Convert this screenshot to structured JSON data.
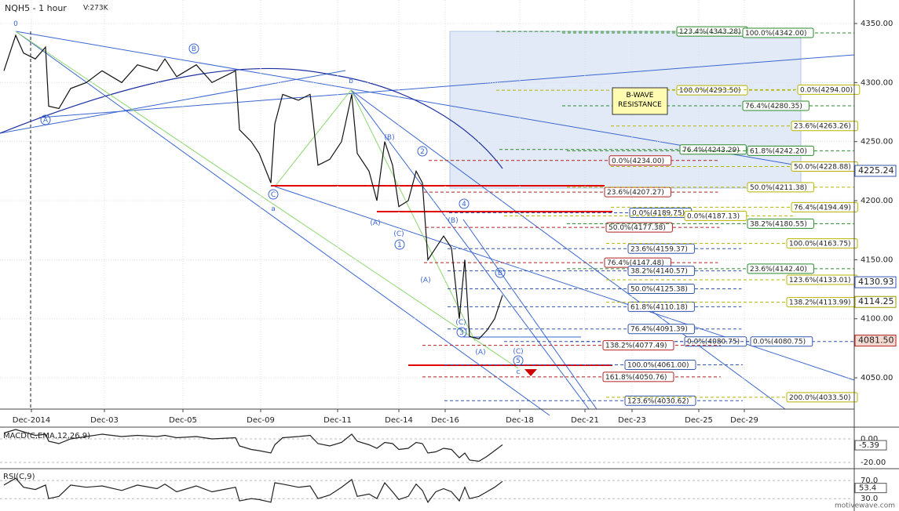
{
  "chart_data": {
    "type": "line",
    "title": "NQH5 - 1 hour",
    "subtitle": "V:273K",
    "color": "#111111",
    "x": [
      2,
      8,
      12,
      18,
      23.2,
      24.8,
      30,
      36,
      44,
      52,
      62,
      70,
      80,
      84,
      90,
      100,
      108,
      120,
      122,
      128,
      132,
      138,
      140,
      144,
      152,
      158,
      162,
      168,
      174,
      179.2,
      182,
      188,
      192,
      196,
      200,
      203.2,
      208,
      212,
      215.2,
      218,
      222,
      226,
      230,
      234,
      236.8,
      239.2,
      244,
      248,
      252,
      256
    ],
    "values": [
      4310,
      4340,
      4325,
      4320,
      4330,
      4280,
      4278,
      4295,
      4300,
      4310,
      4300,
      4315,
      4310,
      4320,
      4305,
      4315,
      4300,
      4310,
      4260,
      4250,
      4240,
      4215,
      4265,
      4290,
      4285,
      4290,
      4230,
      4235,
      4250,
      4290,
      4240,
      4225,
      4200,
      4250,
      4230,
      4195,
      4200,
      4225,
      4215,
      4150,
      4160,
      4170,
      4160,
      4100,
      4150,
      4085,
      4083,
      4090,
      4100,
      4120
    ],
    "xlim": [
      0,
      435.2
    ],
    "xticks": [
      {
        "value": 16,
        "label": "Dec-2014"
      },
      {
        "value": 53.2,
        "label": "Dec-03"
      },
      {
        "value": 93.2,
        "label": "Dec-05"
      },
      {
        "value": 132.8,
        "label": "Dec-09"
      },
      {
        "value": 172,
        "label": "Dec-11"
      },
      {
        "value": 203.2,
        "label": "Dec-14"
      },
      {
        "value": 226.8,
        "label": "Dec-16"
      },
      {
        "value": 264.8,
        "label": "Dec-18"
      },
      {
        "value": 298,
        "label": "Dec-21"
      },
      {
        "value": 322,
        "label": "Dec-23"
      },
      {
        "value": 356,
        "label": "Dec-25"
      },
      {
        "value": 379.2,
        "label": "Dec-29"
      }
    ],
    "ylim": [
      4023.5,
      4369.9
    ],
    "yticks": [
      {
        "value": 4050,
        "label": "4050.00"
      },
      {
        "value": 4100,
        "label": "4100.00"
      },
      {
        "value": 4150,
        "label": "4150.00"
      },
      {
        "value": 4200,
        "label": "4200.00"
      },
      {
        "value": 4250,
        "label": "4250.00"
      },
      {
        "value": 4300,
        "label": "4300.00"
      },
      {
        "value": 4350,
        "label": "4350.00"
      }
    ],
    "grid": true,
    "price_tags": [
      {
        "value": 4225.24,
        "color": "#3355aa"
      },
      {
        "value": 4130.93,
        "color": "#3355aa"
      },
      {
        "value": 4114.25,
        "color": "#999900"
      },
      {
        "value": {
          "value": 4081.5,
          "label": "4081.50"
        },
        "color": "#b22222"
      }
    ],
    "levels": [
      {
        "label": "123.4%(4343.28)",
        "value": 4343.28,
        "color": "#2a8a2a"
      },
      {
        "label": "100.0%(4342.00)",
        "value": 4342.0,
        "color": "#2a8a2a"
      },
      {
        "label": "100.0%(4293.50)",
        "value": 4293.5,
        "color": "#b5b500"
      },
      {
        "label": "0.0%(4294.00)",
        "value": 4294.0,
        "color": "#b5b500"
      },
      {
        "label": "76.4%(4280.35)",
        "value": 4280.35,
        "color": "#2a8a2a"
      },
      {
        "label": "23.6%(4263.26)",
        "value": 4263.26,
        "color": "#b5b500"
      },
      {
        "label": "76.4%(4243.29)",
        "value": 4243.29,
        "color": "#2a8a2a"
      },
      {
        "label": "61.8%(4242.20)",
        "value": 4242.2,
        "color": "#2a8a2a"
      },
      {
        "label": "0.0%(4234.00)",
        "value": 4234.0,
        "color": "#b22222"
      },
      {
        "label": "50.0%(4228.88)",
        "value": 4228.88,
        "color": "#b5b500"
      },
      {
        "label": "23.6%(4207.27)",
        "value": 4207.27,
        "color": "#b22222"
      },
      {
        "label": "50.0%(4211.38)",
        "value": 4211.38,
        "color": "#b5b500"
      },
      {
        "label": "0.0%(4189.75)",
        "value": 4189.75,
        "color": "#3355aa"
      },
      {
        "label": "0.0%(4187.13)",
        "value": 4187.13,
        "color": "#b5b500"
      },
      {
        "label": "76.4%(4194.49)",
        "value": 4194.49,
        "color": "#b5b500"
      },
      {
        "label": "50.0%(4177.38)",
        "value": 4177.38,
        "color": "#b22222"
      },
      {
        "label": "38.2%(4180.55)",
        "value": 4180.55,
        "color": "#2a8a2a"
      },
      {
        "label": "23.6%(4159.37)",
        "value": 4159.37,
        "color": "#3355aa"
      },
      {
        "label": "100.0%(4163.75)",
        "value": 4163.75,
        "color": "#b5b500"
      },
      {
        "label": "76.4%(4147.48)",
        "value": 4147.48,
        "color": "#b22222"
      },
      {
        "label": "23.6%(4142.40)",
        "value": 4142.4,
        "color": "#2a8a2a"
      },
      {
        "label": "38.2%(4140.57)",
        "value": 4140.57,
        "color": "#3355aa"
      },
      {
        "label": "123.6%(4133.01)",
        "value": 4133.01,
        "color": "#b5b500"
      },
      {
        "label": "50.0%(4125.38)",
        "value": 4125.38,
        "color": "#3355aa"
      },
      {
        "label": "61.8%(4110.18)",
        "value": 4110.18,
        "color": "#3355aa"
      },
      {
        "label": "138.2%(4113.99)",
        "value": 4113.99,
        "color": "#b5b500"
      },
      {
        "label": "76.4%(4091.39)",
        "value": 4091.39,
        "color": "#3355aa"
      },
      {
        "label": "0.0%(4080.75)",
        "value": 4080.75,
        "color": "#3355aa"
      },
      {
        "label": "0.0%(4080.75)",
        "value": 4080.75,
        "color": "#3355aa"
      },
      {
        "label": "138.2%(4077.49)",
        "value": 4077.49,
        "color": "#b22222"
      },
      {
        "label": "100.0%(4061.00)",
        "value": 4061.0,
        "color": "#3355aa"
      },
      {
        "label": "161.8%(4050.76)",
        "value": 4050.76,
        "color": "#b22222"
      },
      {
        "label": "123.6%(4030.62)",
        "value": 4030.62,
        "color": "#3355aa"
      },
      {
        "label": "200.0%(4033.50)",
        "value": 4033.5,
        "color": "#b5b500"
      }
    ],
    "wave_labels": [
      "0",
      "B",
      "A",
      "b",
      "C",
      "a",
      "(B)",
      "2",
      "(A)",
      "(C)",
      "1",
      "4",
      "(B)",
      "(A)",
      "B",
      "(C)",
      "3",
      "(A)",
      "(C)",
      "5",
      "c"
    ],
    "annotation": "B-WAVE RESISTANCE",
    "panels": [
      {
        "title": "MACD(C,EMA,12,26,9)",
        "type": "line",
        "color": "#222222",
        "values": [
          5,
          8,
          6,
          3,
          4,
          -2,
          -4,
          0,
          2,
          4,
          2,
          3,
          2,
          3,
          1,
          2,
          0,
          1,
          -6,
          -9,
          -10,
          -12,
          -5,
          1,
          2,
          3,
          -4,
          -6,
          -3,
          4,
          -2,
          -5,
          -8,
          -3,
          -4,
          -9,
          -8,
          -3,
          -4,
          -12,
          -11,
          -8,
          -9,
          -16,
          -12,
          -18,
          -19,
          -15,
          -10,
          -5
        ],
        "ylim": [
          -24,
          8
        ],
        "yticks": [
          {
            "value": 0,
            "label": "0.00"
          },
          {
            "value": -20,
            "label": "-20.00"
          }
        ],
        "value_tag": -5.39
      },
      {
        "title": "RSI(C,9)",
        "type": "line",
        "color": "#222222",
        "values": [
          60,
          75,
          55,
          50,
          60,
          30,
          35,
          60,
          55,
          58,
          48,
          60,
          52,
          62,
          45,
          58,
          45,
          55,
          25,
          30,
          28,
          22,
          65,
          62,
          55,
          58,
          30,
          38,
          55,
          72,
          35,
          40,
          30,
          65,
          45,
          28,
          35,
          62,
          48,
          22,
          45,
          52,
          45,
          25,
          55,
          30,
          35,
          45,
          55,
          68
        ],
        "ylim": [
          9.6,
          92.6
        ],
        "yticks": [
          {
            "value": 70,
            "label": "70.0"
          },
          {
            "value": 30,
            "label": "30.0"
          }
        ],
        "value_tag": 53.4
      }
    ],
    "watermark": "motivewave.com"
  }
}
